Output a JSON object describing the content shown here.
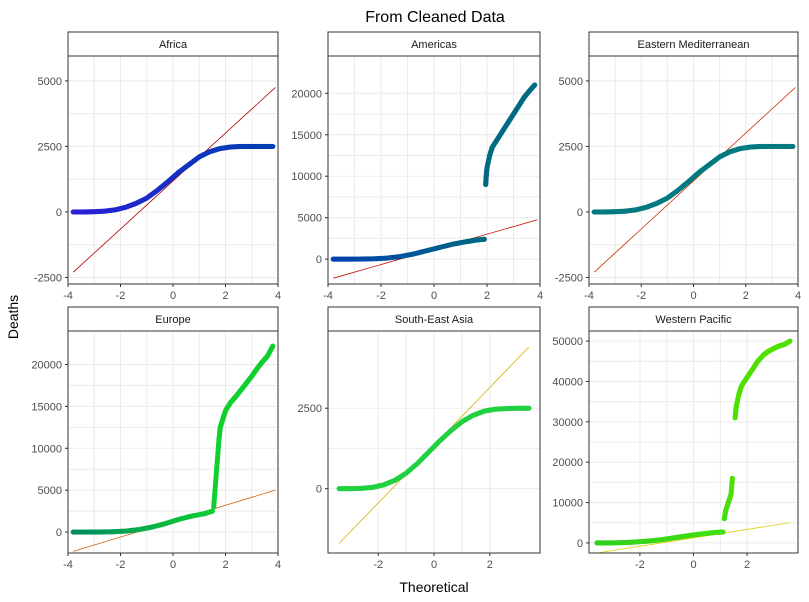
{
  "figure": {
    "title": "From Cleaned Data",
    "xlabel": "Theoretical",
    "ylabel": "Deaths"
  },
  "chart_data": [
    {
      "type": "scatter",
      "title": "Africa",
      "xlim": [
        -4,
        4
      ],
      "ylim": [
        -2750,
        5950
      ],
      "xticks": [
        -4,
        -2,
        0,
        2,
        4
      ],
      "yticks": [
        -2500,
        0,
        2500,
        5000
      ],
      "grid": true,
      "line": {
        "color": "#b00000",
        "x": [
          -3.8,
          3.9
        ],
        "y": [
          -2300,
          4750
        ]
      },
      "series": [
        {
          "x": [
            -3.8,
            -3.4,
            -3.0,
            -2.6,
            -2.2,
            -1.8,
            -1.4,
            -1.0,
            -0.6,
            -0.2,
            0.2,
            0.6,
            1.0,
            1.4,
            1.8,
            2.2,
            2.6,
            3.0,
            3.4,
            3.8
          ],
          "y": [
            0,
            0,
            10,
            30,
            80,
            180,
            330,
            530,
            820,
            1150,
            1500,
            1800,
            2100,
            2300,
            2420,
            2480,
            2500,
            2500,
            2500,
            2500
          ]
        }
      ],
      "colors": [
        "#2a1fd8",
        "#0040b0"
      ]
    },
    {
      "type": "scatter",
      "title": "Americas",
      "xlim": [
        -4,
        4
      ],
      "ylim": [
        -3000,
        24500
      ],
      "xticks": [
        -4,
        -2,
        0,
        2,
        4
      ],
      "yticks": [
        0,
        5000,
        10000,
        15000,
        20000
      ],
      "grid": true,
      "line": {
        "color": "#c01000",
        "x": [
          -3.8,
          3.9
        ],
        "y": [
          -2300,
          4750
        ]
      },
      "series": [
        {
          "x": [
            -3.8,
            -3.3,
            -2.8,
            -2.3,
            -1.8,
            -1.3,
            -0.8,
            -0.3,
            0.2,
            0.7,
            1.2,
            1.6,
            1.9
          ],
          "y": [
            0,
            0,
            10,
            40,
            120,
            300,
            600,
            1000,
            1400,
            1800,
            2100,
            2300,
            2400
          ]
        },
        {
          "x": [
            1.95,
            1.97,
            2.0,
            2.1,
            2.2,
            2.4,
            2.6,
            2.8,
            3.0,
            3.2,
            3.4,
            3.6,
            3.8
          ],
          "y": [
            9000,
            10000,
            11000,
            12500,
            13500,
            14500,
            15500,
            16500,
            17500,
            18500,
            19500,
            20300,
            21000
          ]
        }
      ],
      "colors": [
        "#0040b0",
        "#006a82"
      ]
    },
    {
      "type": "scatter",
      "title": "Eastern Mediterranean",
      "xlim": [
        -4,
        4
      ],
      "ylim": [
        -2750,
        5950
      ],
      "xticks": [
        -4,
        -2,
        0,
        2,
        4
      ],
      "yticks": [
        -2500,
        0,
        2500,
        5000
      ],
      "grid": true,
      "line": {
        "color": "#c83000",
        "x": [
          -3.8,
          3.9
        ],
        "y": [
          -2300,
          4750
        ]
      },
      "series": [
        {
          "x": [
            -3.8,
            -3.4,
            -3.0,
            -2.6,
            -2.2,
            -1.8,
            -1.4,
            -1.0,
            -0.6,
            -0.2,
            0.2,
            0.6,
            1.0,
            1.4,
            1.8,
            2.2,
            2.6,
            3.0,
            3.4,
            3.8
          ],
          "y": [
            0,
            0,
            10,
            30,
            80,
            180,
            330,
            530,
            820,
            1150,
            1500,
            1800,
            2100,
            2300,
            2420,
            2480,
            2500,
            2500,
            2500,
            2500
          ]
        }
      ],
      "colors": [
        "#007a80",
        "#007a80"
      ]
    },
    {
      "type": "scatter",
      "title": "Europe",
      "xlim": [
        -4,
        4
      ],
      "ylim": [
        -2500,
        24000
      ],
      "xticks": [
        -4,
        -2,
        0,
        2,
        4
      ],
      "yticks": [
        0,
        5000,
        10000,
        15000,
        20000
      ],
      "grid": true,
      "line": {
        "color": "#d06000",
        "x": [
          -3.8,
          3.9
        ],
        "y": [
          -2300,
          5000
        ]
      },
      "series": [
        {
          "x": [
            -3.8,
            -3.3,
            -2.8,
            -2.3,
            -1.8,
            -1.3,
            -0.8,
            -0.3,
            0.2,
            0.7,
            1.2,
            1.5
          ],
          "y": [
            0,
            0,
            10,
            40,
            120,
            300,
            600,
            1000,
            1500,
            1900,
            2200,
            2500
          ]
        },
        {
          "x": [
            1.55,
            1.6,
            1.65,
            1.7,
            1.75,
            1.8,
            1.9,
            2.0,
            2.2,
            2.4,
            2.6,
            2.8,
            3.0,
            3.2,
            3.4,
            3.6,
            3.8
          ],
          "y": [
            3000,
            5000,
            7000,
            9000,
            11000,
            12500,
            13500,
            14500,
            15500,
            16200,
            17000,
            17800,
            18600,
            19500,
            20300,
            21000,
            22200
          ]
        }
      ],
      "colors": [
        "#008a60",
        "#10d030"
      ]
    },
    {
      "type": "scatter",
      "title": "South-East Asia",
      "xlim": [
        -3.8,
        3.8
      ],
      "ylim": [
        -2000,
        4900
      ],
      "xticks": [
        -2,
        0,
        2
      ],
      "yticks": [
        0,
        2500
      ],
      "grid": true,
      "line": {
        "color": "#d8b000",
        "x": [
          -3.4,
          3.4
        ],
        "y": [
          -1700,
          4400
        ]
      },
      "series": [
        {
          "x": [
            -3.4,
            -3.0,
            -2.6,
            -2.2,
            -1.8,
            -1.4,
            -1.0,
            -0.6,
            -0.2,
            0.2,
            0.6,
            1.0,
            1.4,
            1.8,
            2.2,
            2.6,
            3.0,
            3.4
          ],
          "y": [
            0,
            0,
            10,
            40,
            120,
            260,
            480,
            780,
            1130,
            1480,
            1800,
            2080,
            2280,
            2410,
            2470,
            2490,
            2500,
            2500
          ]
        }
      ],
      "colors": [
        "#20d040",
        "#20d040"
      ]
    },
    {
      "type": "scatter",
      "title": "Western Pacific",
      "xlim": [
        -3.9,
        3.9
      ],
      "ylim": [
        -2500,
        52500
      ],
      "xticks": [
        -2,
        0,
        2
      ],
      "yticks": [
        0,
        10000,
        20000,
        30000,
        40000,
        50000
      ],
      "grid": true,
      "line": {
        "color": "#e0d000",
        "x": [
          -3.6,
          3.6
        ],
        "y": [
          -2500,
          5000
        ]
      },
      "series": [
        {
          "x": [
            -3.6,
            -3.2,
            -2.8,
            -2.4,
            -2.0,
            -1.6,
            -1.2,
            -0.8,
            -0.4,
            0.0,
            0.4,
            0.8,
            1.1
          ],
          "y": [
            0,
            0,
            50,
            150,
            300,
            500,
            800,
            1200,
            1600,
            2000,
            2300,
            2600,
            2700
          ]
        },
        {
          "x": [
            1.15,
            1.2,
            1.3,
            1.4,
            1.45
          ],
          "y": [
            6000,
            8000,
            10000,
            12000,
            16000
          ]
        },
        {
          "x": [
            1.55,
            1.6,
            1.7,
            1.8,
            2.0,
            2.2,
            2.4,
            2.6,
            2.8,
            3.0,
            3.2,
            3.4,
            3.6
          ],
          "y": [
            31000,
            34000,
            37000,
            39000,
            41000,
            43000,
            45000,
            46500,
            47500,
            48200,
            48800,
            49200,
            50000
          ]
        }
      ],
      "colors": [
        "#30d020",
        "#40e010",
        "#50e000"
      ]
    }
  ]
}
